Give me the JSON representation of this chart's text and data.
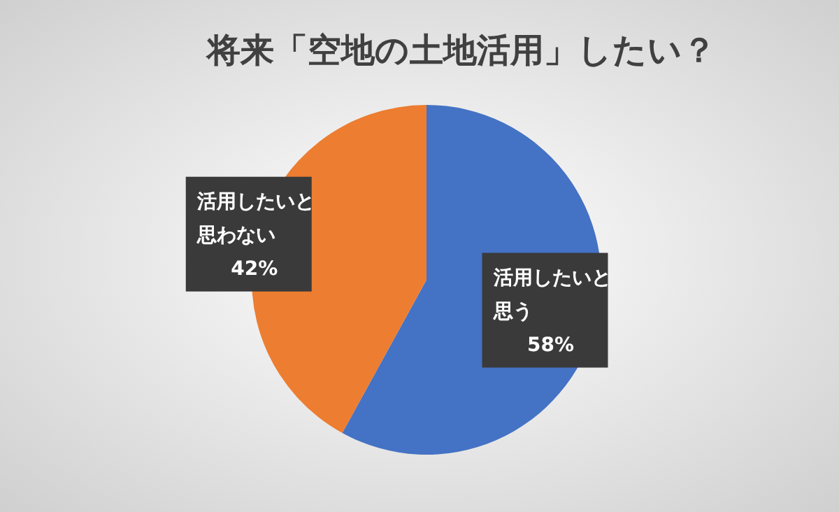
{
  "chart_data": {
    "type": "pie",
    "title": "将来「空地の土地活用」したい？",
    "categories": [
      "活用したいと思う",
      "活用したいと思わない"
    ],
    "values": [
      58,
      42
    ],
    "colors": [
      "#4472c4",
      "#ed7d31"
    ],
    "value_labels": [
      "58%",
      "42%"
    ]
  }
}
